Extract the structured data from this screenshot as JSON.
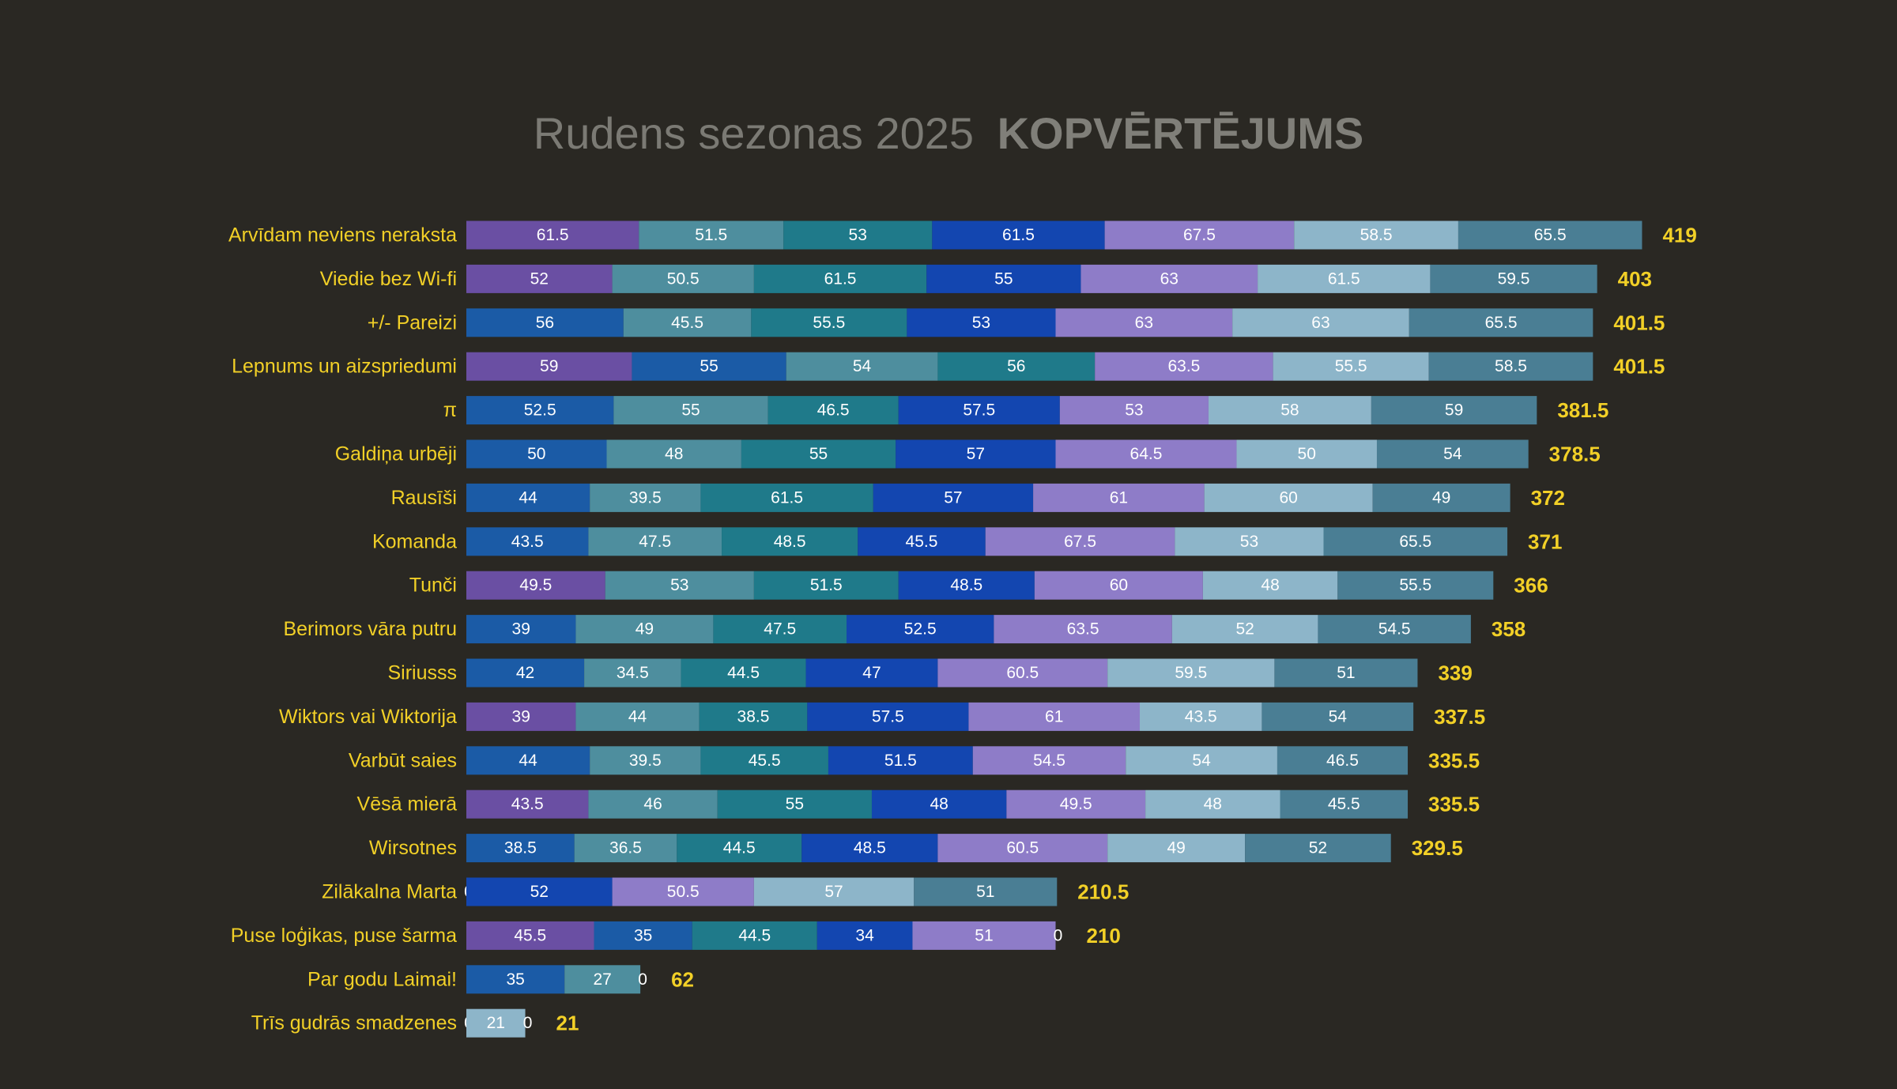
{
  "chart_data": {
    "type": "bar",
    "orientation": "horizontal",
    "stacked": true,
    "title": {
      "light": "Rudens sezonas 2025",
      "bold": "KOPVĒRTĒJUMS"
    },
    "colors": {
      "background": "#2a2823",
      "team_label": "#f2d027",
      "total_label": "#f2d027",
      "title_light": "#7b7a74",
      "title_bold": "#807f79",
      "segment_text": "#ffffff",
      "palette": {
        "purple": "#6a4fa3",
        "blue": "#1b5ba6",
        "steel": "#4e8e9e",
        "teal": "#1f7a8a",
        "royal": "#1346b0",
        "lavender": "#8e7cc8",
        "lightblue": "#8db5c9",
        "slate": "#4a7e94"
      }
    },
    "rows": [
      {
        "team": "Arvīdam neviens neraksta",
        "total": "419",
        "segments": [
          {
            "v": 61.5,
            "label": "61.5",
            "c": "purple"
          },
          {
            "v": 51.5,
            "label": "51.5",
            "c": "steel"
          },
          {
            "v": 53,
            "label": "53",
            "c": "teal"
          },
          {
            "v": 61.5,
            "label": "61.5",
            "c": "royal"
          },
          {
            "v": 67.5,
            "label": "67.5",
            "c": "lavender"
          },
          {
            "v": 58.5,
            "label": "58.5",
            "c": "lightblue"
          },
          {
            "v": 65.5,
            "label": "65.5",
            "c": "slate"
          }
        ]
      },
      {
        "team": "Viedie bez Wi-fi",
        "total": "403",
        "segments": [
          {
            "v": 52,
            "label": "52",
            "c": "purple"
          },
          {
            "v": 50.5,
            "label": "50.5",
            "c": "steel"
          },
          {
            "v": 61.5,
            "label": "61.5",
            "c": "teal"
          },
          {
            "v": 55,
            "label": "55",
            "c": "royal"
          },
          {
            "v": 63,
            "label": "63",
            "c": "lavender"
          },
          {
            "v": 61.5,
            "label": "61.5",
            "c": "lightblue"
          },
          {
            "v": 59.5,
            "label": "59.5",
            "c": "slate"
          }
        ]
      },
      {
        "team": "+/- Pareizi",
        "total": "401.5",
        "segments": [
          {
            "v": 56,
            "label": "56",
            "c": "blue"
          },
          {
            "v": 45.5,
            "label": "45.5",
            "c": "steel"
          },
          {
            "v": 55.5,
            "label": "55.5",
            "c": "teal"
          },
          {
            "v": 53,
            "label": "53",
            "c": "royal"
          },
          {
            "v": 63,
            "label": "63",
            "c": "lavender"
          },
          {
            "v": 63,
            "label": "63",
            "c": "lightblue"
          },
          {
            "v": 65.5,
            "label": "65.5",
            "c": "slate"
          }
        ]
      },
      {
        "team": "Lepnums un aizspriedumi",
        "total": "401.5",
        "segments": [
          {
            "v": 59,
            "label": "59",
            "c": "purple"
          },
          {
            "v": 55,
            "label": "55",
            "c": "blue"
          },
          {
            "v": 54,
            "label": "54",
            "c": "steel"
          },
          {
            "v": 56,
            "label": "56",
            "c": "teal"
          },
          {
            "v": 63.5,
            "label": "63.5",
            "c": "lavender"
          },
          {
            "v": 55.5,
            "label": "55.5",
            "c": "lightblue"
          },
          {
            "v": 58.5,
            "label": "58.5",
            "c": "slate"
          }
        ]
      },
      {
        "team": "π",
        "total": "381.5",
        "segments": [
          {
            "v": 52.5,
            "label": "52.5",
            "c": "blue"
          },
          {
            "v": 55,
            "label": "55",
            "c": "steel"
          },
          {
            "v": 46.5,
            "label": "46.5",
            "c": "teal"
          },
          {
            "v": 57.5,
            "label": "57.5",
            "c": "royal"
          },
          {
            "v": 53,
            "label": "53",
            "c": "lavender"
          },
          {
            "v": 58,
            "label": "58",
            "c": "lightblue"
          },
          {
            "v": 59,
            "label": "59",
            "c": "slate"
          }
        ]
      },
      {
        "team": "Galdiņa urbēji",
        "total": "378.5",
        "segments": [
          {
            "v": 50,
            "label": "50",
            "c": "blue"
          },
          {
            "v": 48,
            "label": "48",
            "c": "steel"
          },
          {
            "v": 55,
            "label": "55",
            "c": "teal"
          },
          {
            "v": 57,
            "label": "57",
            "c": "royal"
          },
          {
            "v": 64.5,
            "label": "64.5",
            "c": "lavender"
          },
          {
            "v": 50,
            "label": "50",
            "c": "lightblue"
          },
          {
            "v": 54,
            "label": "54",
            "c": "slate"
          }
        ]
      },
      {
        "team": "Rausīši",
        "total": "372",
        "segments": [
          {
            "v": 44,
            "label": "44",
            "c": "blue"
          },
          {
            "v": 39.5,
            "label": "39.5",
            "c": "steel"
          },
          {
            "v": 61.5,
            "label": "61.5",
            "c": "teal"
          },
          {
            "v": 57,
            "label": "57",
            "c": "royal"
          },
          {
            "v": 61,
            "label": "61",
            "c": "lavender"
          },
          {
            "v": 60,
            "label": "60",
            "c": "lightblue"
          },
          {
            "v": 49,
            "label": "49",
            "c": "slate"
          }
        ]
      },
      {
        "team": "Komanda",
        "total": "371",
        "segments": [
          {
            "v": 43.5,
            "label": "43.5",
            "c": "blue"
          },
          {
            "v": 47.5,
            "label": "47.5",
            "c": "steel"
          },
          {
            "v": 48.5,
            "label": "48.5",
            "c": "teal"
          },
          {
            "v": 45.5,
            "label": "45.5",
            "c": "royal"
          },
          {
            "v": 67.5,
            "label": "67.5",
            "c": "lavender"
          },
          {
            "v": 53,
            "label": "53",
            "c": "lightblue"
          },
          {
            "v": 65.5,
            "label": "65.5",
            "c": "slate"
          }
        ]
      },
      {
        "team": "Tunči",
        "total": "366",
        "segments": [
          {
            "v": 49.5,
            "label": "49.5",
            "c": "purple"
          },
          {
            "v": 53,
            "label": "53",
            "c": "steel"
          },
          {
            "v": 51.5,
            "label": "51.5",
            "c": "teal"
          },
          {
            "v": 48.5,
            "label": "48.5",
            "c": "royal"
          },
          {
            "v": 60,
            "label": "60",
            "c": "lavender"
          },
          {
            "v": 48,
            "label": "48",
            "c": "lightblue"
          },
          {
            "v": 55.5,
            "label": "55.5",
            "c": "slate"
          }
        ]
      },
      {
        "team": "Berimors vāra putru",
        "total": "358",
        "segments": [
          {
            "v": 39,
            "label": "39",
            "c": "blue"
          },
          {
            "v": 49,
            "label": "49",
            "c": "steel"
          },
          {
            "v": 47.5,
            "label": "47.5",
            "c": "teal"
          },
          {
            "v": 52.5,
            "label": "52.5",
            "c": "royal"
          },
          {
            "v": 63.5,
            "label": "63.5",
            "c": "lavender"
          },
          {
            "v": 52,
            "label": "52",
            "c": "lightblue"
          },
          {
            "v": 54.5,
            "label": "54.5",
            "c": "slate"
          }
        ]
      },
      {
        "team": "Siriusss",
        "total": "339",
        "segments": [
          {
            "v": 42,
            "label": "42",
            "c": "blue"
          },
          {
            "v": 34.5,
            "label": "34.5",
            "c": "steel"
          },
          {
            "v": 44.5,
            "label": "44.5",
            "c": "teal"
          },
          {
            "v": 47,
            "label": "47",
            "c": "royal"
          },
          {
            "v": 60.5,
            "label": "60.5",
            "c": "lavender"
          },
          {
            "v": 59.5,
            "label": "59.5",
            "c": "lightblue"
          },
          {
            "v": 51,
            "label": "51",
            "c": "slate"
          }
        ]
      },
      {
        "team": "Wiktors vai Wiktorija",
        "total": "337.5",
        "segments": [
          {
            "v": 39,
            "label": "39",
            "c": "purple"
          },
          {
            "v": 44,
            "label": "44",
            "c": "steel"
          },
          {
            "v": 38.5,
            "label": "38.5",
            "c": "teal"
          },
          {
            "v": 57.5,
            "label": "57.5",
            "c": "royal"
          },
          {
            "v": 61,
            "label": "61",
            "c": "lavender"
          },
          {
            "v": 43.5,
            "label": "43.5",
            "c": "lightblue"
          },
          {
            "v": 54,
            "label": "54",
            "c": "slate"
          }
        ]
      },
      {
        "team": "Varbūt saies",
        "total": "335.5",
        "segments": [
          {
            "v": 44,
            "label": "44",
            "c": "blue"
          },
          {
            "v": 39.5,
            "label": "39.5",
            "c": "steel"
          },
          {
            "v": 45.5,
            "label": "45.5",
            "c": "teal"
          },
          {
            "v": 51.5,
            "label": "51.5",
            "c": "royal"
          },
          {
            "v": 54.5,
            "label": "54.5",
            "c": "lavender"
          },
          {
            "v": 54,
            "label": "54",
            "c": "lightblue"
          },
          {
            "v": 46.5,
            "label": "46.5",
            "c": "slate"
          }
        ]
      },
      {
        "team": "Vēsā mierā",
        "total": "335.5",
        "segments": [
          {
            "v": 43.5,
            "label": "43.5",
            "c": "purple"
          },
          {
            "v": 46,
            "label": "46",
            "c": "steel"
          },
          {
            "v": 55,
            "label": "55",
            "c": "teal"
          },
          {
            "v": 48,
            "label": "48",
            "c": "royal"
          },
          {
            "v": 49.5,
            "label": "49.5",
            "c": "lavender"
          },
          {
            "v": 48,
            "label": "48",
            "c": "lightblue"
          },
          {
            "v": 45.5,
            "label": "45.5",
            "c": "slate"
          }
        ]
      },
      {
        "team": "Wirsotnes",
        "total": "329.5",
        "segments": [
          {
            "v": 38.5,
            "label": "38.5",
            "c": "blue"
          },
          {
            "v": 36.5,
            "label": "36.5",
            "c": "steel"
          },
          {
            "v": 44.5,
            "label": "44.5",
            "c": "teal"
          },
          {
            "v": 48.5,
            "label": "48.5",
            "c": "royal"
          },
          {
            "v": 60.5,
            "label": "60.5",
            "c": "lavender"
          },
          {
            "v": 49,
            "label": "49",
            "c": "lightblue"
          },
          {
            "v": 52,
            "label": "52",
            "c": "slate"
          }
        ]
      },
      {
        "team": "Zilākalna Marta",
        "total": "210.5",
        "segments": [
          {
            "v": 0,
            "label": "0",
            "c": "blue"
          },
          {
            "v": 52,
            "label": "52",
            "c": "royal"
          },
          {
            "v": 50.5,
            "label": "50.5",
            "c": "lavender"
          },
          {
            "v": 57,
            "label": "57",
            "c": "lightblue"
          },
          {
            "v": 51,
            "label": "51",
            "c": "slate"
          }
        ]
      },
      {
        "team": "Puse loģikas, puse šarma",
        "total": "210",
        "segments": [
          {
            "v": 45.5,
            "label": "45.5",
            "c": "purple"
          },
          {
            "v": 35,
            "label": "35",
            "c": "blue"
          },
          {
            "v": 44.5,
            "label": "44.5",
            "c": "teal"
          },
          {
            "v": 34,
            "label": "34",
            "c": "royal"
          },
          {
            "v": 51,
            "label": "51",
            "c": "lavender"
          },
          {
            "v": 0,
            "label": "0",
            "c": "lightblue"
          }
        ]
      },
      {
        "team": "Par godu Laimai!",
        "total": "62",
        "segments": [
          {
            "v": 35,
            "label": "35",
            "c": "blue"
          },
          {
            "v": 27,
            "label": "27",
            "c": "steel"
          },
          {
            "v": 0,
            "label": "0",
            "c": "teal"
          }
        ]
      },
      {
        "team": "Trīs gudrās smadzenes",
        "total": "21",
        "segments": [
          {
            "v": 0,
            "label": "0",
            "c": "blue"
          },
          {
            "v": 21,
            "label": "21",
            "c": "lightblue"
          },
          {
            "v": 0,
            "label": "0",
            "c": "teal"
          }
        ]
      }
    ]
  }
}
